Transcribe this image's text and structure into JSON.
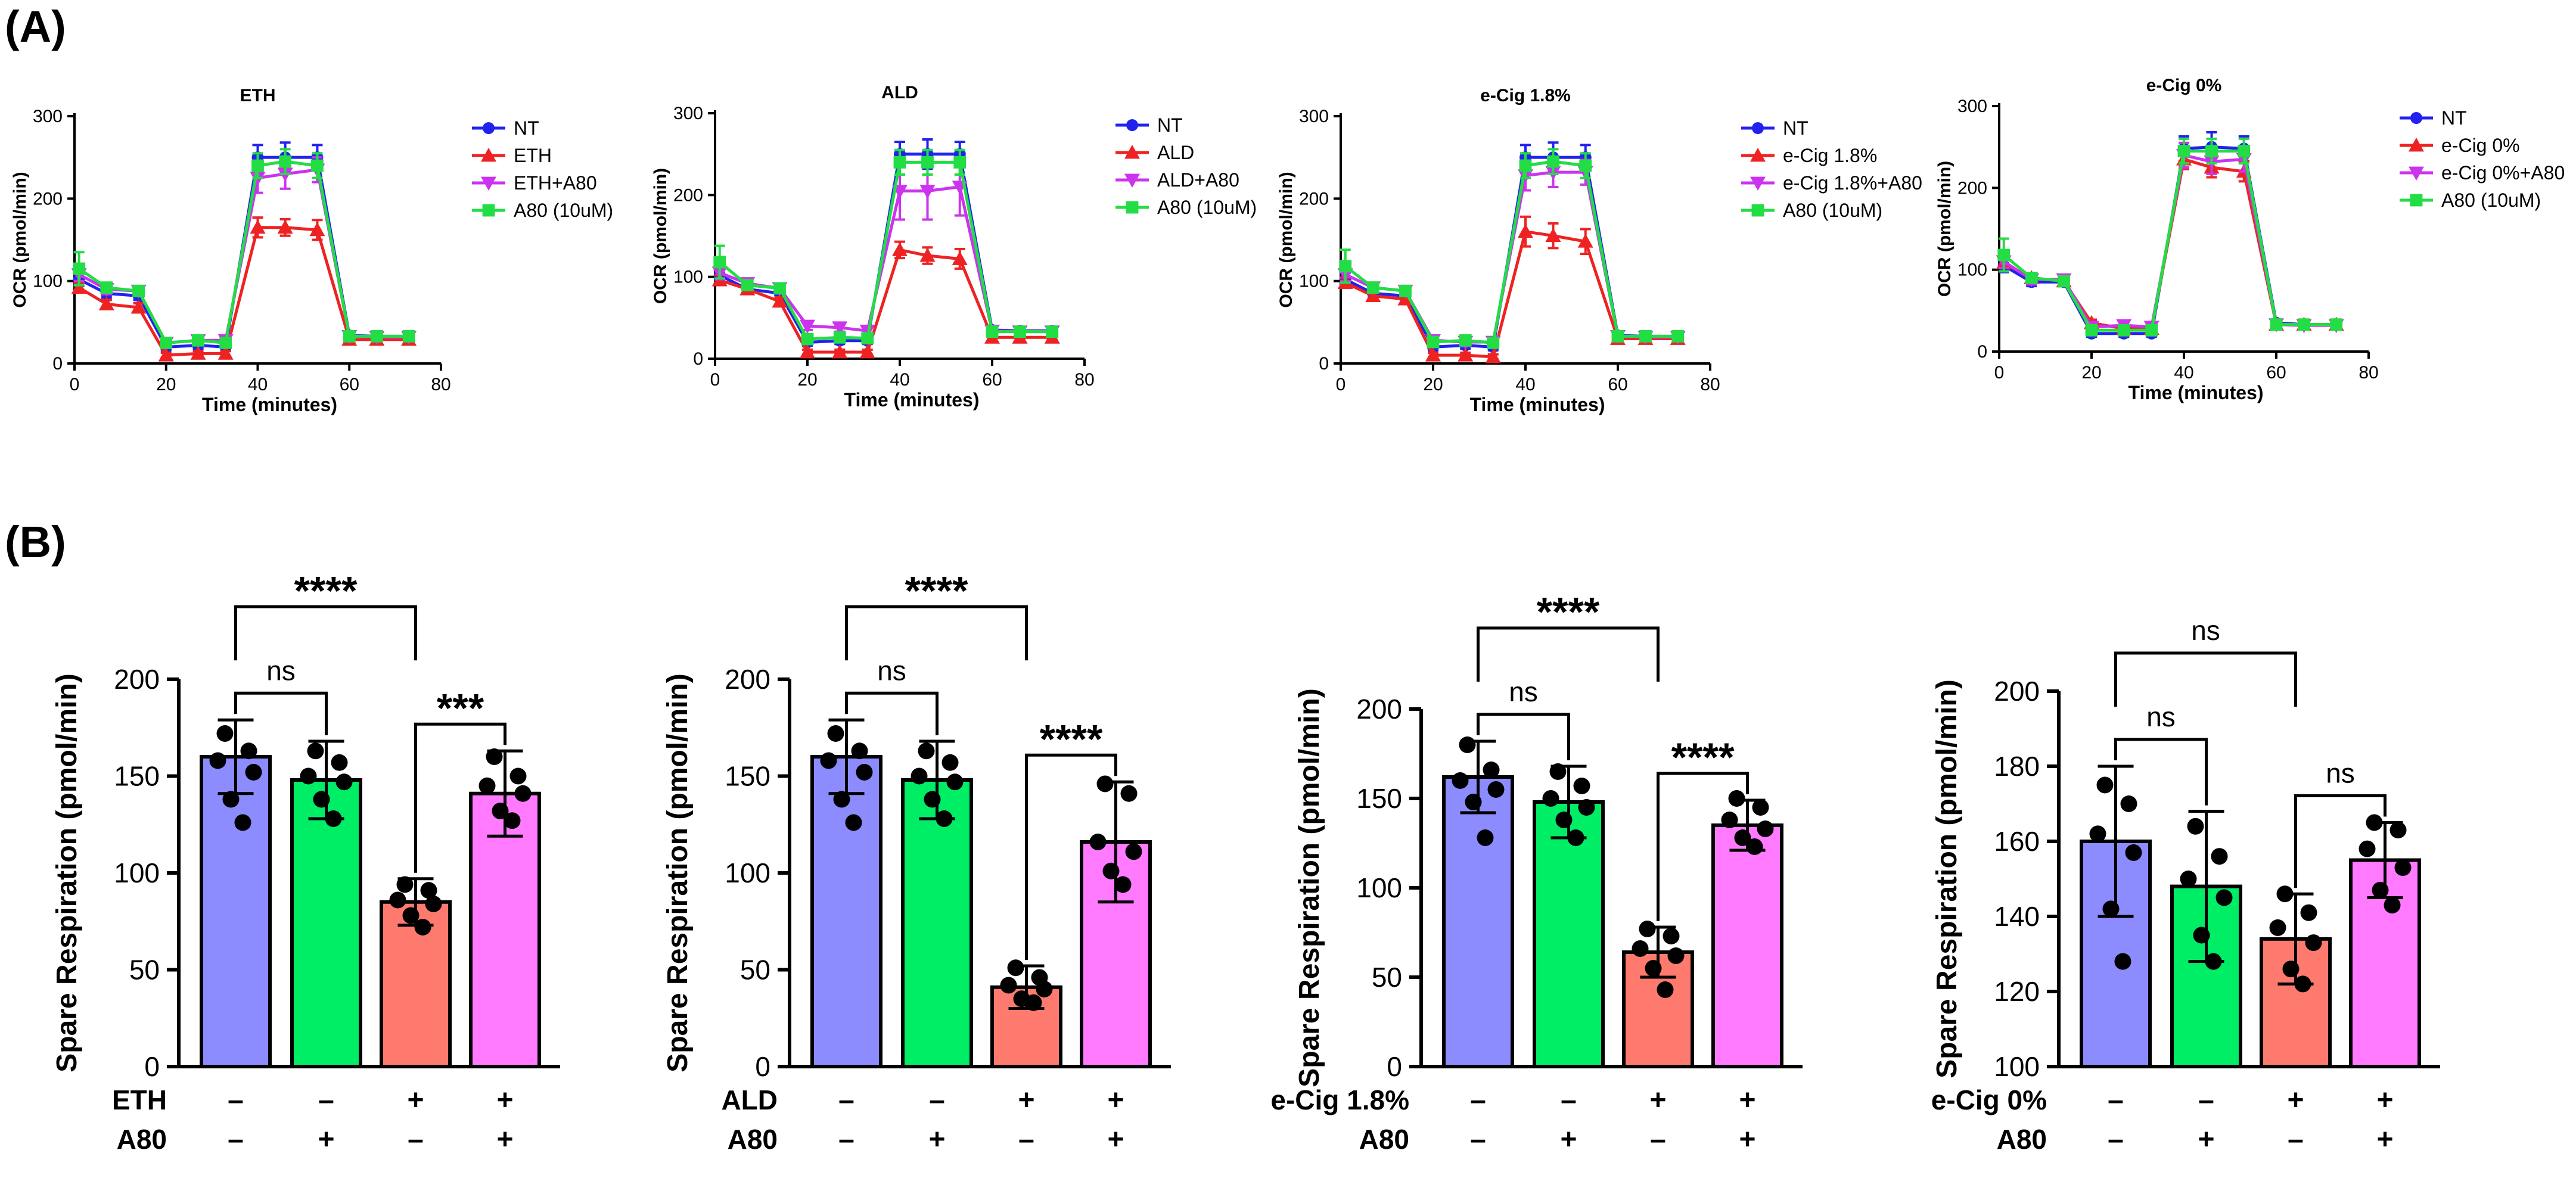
{
  "figure": {
    "panel_a_label": "(A)",
    "panel_b_label": "(B)",
    "colors": {
      "NT": "#2222ee",
      "TREAT": "#ee2222",
      "TREAT_A80": "#cc33ee",
      "A80": "#22dd44",
      "bar_NT": "#8c8cff",
      "bar_A80": "#00ee66",
      "bar_TREAT": "#ff7a6e",
      "bar_TREAT_A80": "#ff7aff"
    }
  },
  "chart_data": [
    {
      "type": "line",
      "panel": "A",
      "title": "ETH",
      "xlabel": "Time (minutes)",
      "ylabel": "OCR (pmol/min)",
      "xlim": [
        0,
        80
      ],
      "ylim": [
        0,
        300
      ],
      "xticks": [
        "0",
        "20",
        "40",
        "60",
        "80"
      ],
      "yticks": [
        "0",
        "100",
        "200",
        "300"
      ],
      "x": [
        1,
        7,
        14,
        20,
        27,
        33,
        40,
        46,
        53,
        60,
        66,
        73
      ],
      "series": [
        {
          "name": "NT",
          "color": "#2222ee",
          "marker": "circle",
          "values": [
            102,
            85,
            82,
            20,
            22,
            20,
            250,
            250,
            250,
            34,
            33,
            33
          ],
          "errors": [
            8,
            5,
            5,
            4,
            4,
            4,
            15,
            18,
            15,
            3,
            3,
            3
          ]
        },
        {
          "name": "ETH",
          "color": "#ee2222",
          "marker": "triangle",
          "values": [
            92,
            72,
            68,
            10,
            12,
            12,
            165,
            165,
            162,
            29,
            29,
            29
          ],
          "errors": [
            6,
            5,
            5,
            3,
            3,
            3,
            12,
            10,
            12,
            3,
            3,
            3
          ]
        },
        {
          "name": "ETH+A80",
          "color": "#cc33ee",
          "marker": "triangle-down",
          "values": [
            108,
            90,
            88,
            25,
            28,
            28,
            225,
            230,
            235,
            33,
            32,
            32
          ],
          "errors": [
            8,
            6,
            6,
            5,
            5,
            5,
            18,
            18,
            15,
            3,
            3,
            3
          ]
        },
        {
          "name": "A80 (10uM)",
          "color": "#22dd44",
          "marker": "square",
          "values": [
            115,
            92,
            88,
            25,
            28,
            25,
            240,
            245,
            240,
            33,
            33,
            33
          ],
          "errors": [
            20,
            6,
            6,
            5,
            5,
            5,
            15,
            15,
            15,
            3,
            3,
            3
          ]
        }
      ]
    },
    {
      "type": "line",
      "panel": "A",
      "title": "ALD",
      "xlabel": "Time (minutes)",
      "ylabel": "OCR (pmol/min)",
      "xlim": [
        0,
        80
      ],
      "ylim": [
        0,
        300
      ],
      "xticks": [
        "0",
        "20",
        "40",
        "60",
        "80"
      ],
      "yticks": [
        "0",
        "100",
        "200",
        "300"
      ],
      "x": [
        1,
        7,
        14,
        20,
        27,
        33,
        40,
        46,
        53,
        60,
        66,
        73
      ],
      "series": [
        {
          "name": "NT",
          "color": "#2222ee",
          "marker": "circle",
          "values": [
            102,
            85,
            80,
            20,
            22,
            22,
            250,
            250,
            250,
            35,
            34,
            34
          ],
          "errors": [
            8,
            5,
            5,
            4,
            4,
            4,
            15,
            18,
            15,
            3,
            3,
            3
          ]
        },
        {
          "name": "ALD",
          "color": "#ee2222",
          "marker": "triangle",
          "values": [
            96,
            85,
            70,
            8,
            8,
            8,
            133,
            126,
            122,
            26,
            26,
            26
          ],
          "errors": [
            6,
            5,
            5,
            3,
            3,
            3,
            10,
            10,
            12,
            3,
            3,
            3
          ]
        },
        {
          "name": "ALD+A80",
          "color": "#cc33ee",
          "marker": "triangle-down",
          "values": [
            105,
            92,
            86,
            40,
            38,
            34,
            205,
            205,
            210,
            34,
            33,
            33
          ],
          "errors": [
            8,
            6,
            6,
            5,
            5,
            5,
            35,
            35,
            35,
            3,
            3,
            3
          ]
        },
        {
          "name": "A80 (10uM)",
          "color": "#22dd44",
          "marker": "square",
          "values": [
            118,
            90,
            86,
            24,
            26,
            25,
            240,
            240,
            240,
            33,
            33,
            33
          ],
          "errors": [
            20,
            6,
            6,
            5,
            5,
            5,
            15,
            15,
            15,
            3,
            3,
            3
          ]
        }
      ]
    },
    {
      "type": "line",
      "panel": "A",
      "title": "e-Cig 1.8%",
      "xlabel": "Time (minutes)",
      "ylabel": "OCR (pmol/min)",
      "xlim": [
        0,
        80
      ],
      "ylim": [
        0,
        300
      ],
      "xticks": [
        "0",
        "20",
        "40",
        "60",
        "80"
      ],
      "yticks": [
        "0",
        "100",
        "200",
        "300"
      ],
      "x": [
        1,
        7,
        14,
        20,
        27,
        33,
        40,
        46,
        53,
        60,
        66,
        73
      ],
      "series": [
        {
          "name": "NT",
          "color": "#2222ee",
          "marker": "circle",
          "values": [
            102,
            85,
            82,
            20,
            22,
            20,
            250,
            250,
            250,
            34,
            33,
            33
          ],
          "errors": [
            8,
            5,
            5,
            4,
            4,
            4,
            15,
            18,
            15,
            3,
            3,
            3
          ]
        },
        {
          "name": "e-Cig 1.8%",
          "color": "#ee2222",
          "marker": "triangle",
          "values": [
            98,
            82,
            78,
            10,
            10,
            8,
            160,
            155,
            148,
            30,
            30,
            30
          ],
          "errors": [
            6,
            5,
            5,
            3,
            3,
            3,
            18,
            15,
            15,
            3,
            3,
            3
          ]
        },
        {
          "name": "e-Cig 1.8%+A80",
          "color": "#cc33ee",
          "marker": "triangle-down",
          "values": [
            108,
            92,
            88,
            28,
            26,
            26,
            228,
            232,
            232,
            33,
            32,
            32
          ],
          "errors": [
            8,
            6,
            6,
            5,
            5,
            5,
            18,
            18,
            15,
            3,
            3,
            3
          ]
        },
        {
          "name": "A80 (10uM)",
          "color": "#22dd44",
          "marker": "square",
          "values": [
            118,
            92,
            88,
            26,
            28,
            25,
            240,
            245,
            240,
            33,
            33,
            33
          ],
          "errors": [
            20,
            6,
            6,
            5,
            5,
            5,
            15,
            15,
            15,
            3,
            3,
            3
          ]
        }
      ]
    },
    {
      "type": "line",
      "panel": "A",
      "title": "e-Cig 0%",
      "xlabel": "Time (minutes)",
      "ylabel": "OCR (pmol/min)",
      "xlim": [
        0,
        80
      ],
      "ylim": [
        0,
        300
      ],
      "xticks": [
        "0",
        "20",
        "40",
        "60",
        "80"
      ],
      "yticks": [
        "0",
        "100",
        "200",
        "300"
      ],
      "x": [
        1,
        7,
        14,
        20,
        27,
        33,
        40,
        46,
        53,
        60,
        66,
        73
      ],
      "series": [
        {
          "name": "NT",
          "color": "#2222ee",
          "marker": "circle",
          "values": [
            105,
            85,
            85,
            22,
            22,
            22,
            248,
            250,
            248,
            35,
            33,
            33
          ],
          "errors": [
            8,
            5,
            5,
            4,
            4,
            4,
            15,
            18,
            15,
            3,
            3,
            3
          ]
        },
        {
          "name": "e-Cig 0%",
          "color": "#ee2222",
          "marker": "triangle",
          "values": [
            108,
            90,
            86,
            35,
            28,
            28,
            235,
            225,
            220,
            33,
            33,
            33
          ],
          "errors": [
            6,
            5,
            5,
            4,
            4,
            4,
            12,
            12,
            12,
            3,
            3,
            3
          ]
        },
        {
          "name": "e-Cig 0%+A80",
          "color": "#cc33ee",
          "marker": "triangle-down",
          "values": [
            110,
            88,
            88,
            30,
            32,
            30,
            240,
            232,
            235,
            33,
            32,
            32
          ],
          "errors": [
            8,
            6,
            6,
            5,
            5,
            5,
            15,
            15,
            15,
            3,
            3,
            3
          ]
        },
        {
          "name": "A80 (10uM)",
          "color": "#22dd44",
          "marker": "square",
          "values": [
            118,
            90,
            86,
            26,
            26,
            26,
            245,
            245,
            245,
            33,
            33,
            33
          ],
          "errors": [
            20,
            6,
            6,
            5,
            5,
            5,
            15,
            15,
            15,
            3,
            3,
            3
          ]
        }
      ]
    },
    {
      "type": "bar",
      "panel": "B",
      "ylabel": "Spare Respiration (pmol/min)",
      "ylim": [
        0,
        200
      ],
      "yticks": [
        "0",
        "50",
        "100",
        "150",
        "200"
      ],
      "row1_label": "ETH",
      "row2_label": "A80",
      "row1_signs": [
        "–",
        "–",
        "+",
        "+"
      ],
      "row2_signs": [
        "–",
        "+",
        "–",
        "+"
      ],
      "bars": [
        {
          "value": 160,
          "error": 19,
          "color": "#8c8cff",
          "points": [
            172,
            163,
            158,
            152,
            138,
            126
          ]
        },
        {
          "value": 148,
          "error": 20,
          "color": "#00ee66",
          "points": [
            163,
            157,
            150,
            147,
            138,
            128
          ]
        },
        {
          "value": 85,
          "error": 12,
          "color": "#ff7a6e",
          "points": [
            94,
            91,
            86,
            84,
            78,
            72
          ]
        },
        {
          "value": 141,
          "error": 22,
          "color": "#ff7aff",
          "points": [
            160,
            150,
            145,
            141,
            132,
            127
          ]
        }
      ],
      "brackets": [
        {
          "from": 0,
          "to": 1,
          "level": 1,
          "label": "ns"
        },
        {
          "from": 2,
          "to": 3,
          "level": 1,
          "label": "***"
        },
        {
          "from": 0,
          "to": 2,
          "level": 2,
          "label": "****"
        }
      ]
    },
    {
      "type": "bar",
      "panel": "B",
      "ylabel": "Spare Respiration (pmol/min)",
      "ylim": [
        0,
        200
      ],
      "yticks": [
        "0",
        "50",
        "100",
        "150",
        "200"
      ],
      "row1_label": "ALD",
      "row2_label": "A80",
      "row1_signs": [
        "–",
        "–",
        "+",
        "+"
      ],
      "row2_signs": [
        "–",
        "+",
        "–",
        "+"
      ],
      "bars": [
        {
          "value": 160,
          "error": 19,
          "color": "#8c8cff",
          "points": [
            172,
            163,
            158,
            152,
            138,
            126
          ]
        },
        {
          "value": 148,
          "error": 20,
          "color": "#00ee66",
          "points": [
            163,
            157,
            150,
            147,
            138,
            128
          ]
        },
        {
          "value": 41,
          "error": 11,
          "color": "#ff7a6e",
          "points": [
            51,
            46,
            42,
            40,
            35,
            33
          ]
        },
        {
          "value": 116,
          "error": 31,
          "color": "#ff7aff",
          "points": [
            146,
            141,
            116,
            111,
            101,
            94
          ]
        }
      ],
      "brackets": [
        {
          "from": 0,
          "to": 1,
          "level": 1,
          "label": "ns"
        },
        {
          "from": 2,
          "to": 3,
          "level": 1,
          "label": "****"
        },
        {
          "from": 0,
          "to": 2,
          "level": 2,
          "label": "****"
        }
      ]
    },
    {
      "type": "bar",
      "panel": "B",
      "ylabel": "Spare Respiration (pmol/min)",
      "ylim": [
        0,
        200
      ],
      "yticks": [
        "0",
        "50",
        "100",
        "150",
        "200"
      ],
      "row1_label": "e-Cig 1.8%",
      "row2_label": "A80",
      "row1_signs": [
        "–",
        "–",
        "+",
        "+"
      ],
      "row2_signs": [
        "–",
        "+",
        "–",
        "+"
      ],
      "bars": [
        {
          "value": 162,
          "error": 20,
          "color": "#8c8cff",
          "points": [
            180,
            166,
            160,
            155,
            148,
            128
          ]
        },
        {
          "value": 148,
          "error": 20,
          "color": "#00ee66",
          "points": [
            165,
            157,
            150,
            145,
            138,
            128
          ]
        },
        {
          "value": 64,
          "error": 14,
          "color": "#ff7a6e",
          "points": [
            77,
            73,
            66,
            62,
            55,
            43
          ]
        },
        {
          "value": 135,
          "error": 14,
          "color": "#ff7aff",
          "points": [
            150,
            145,
            138,
            133,
            128,
            123
          ]
        }
      ],
      "brackets": [
        {
          "from": 0,
          "to": 1,
          "level": 1,
          "label": "ns"
        },
        {
          "from": 2,
          "to": 3,
          "level": 1,
          "label": "****"
        },
        {
          "from": 0,
          "to": 2,
          "level": 2,
          "label": "****"
        }
      ]
    },
    {
      "type": "bar",
      "panel": "B",
      "ylabel": "Spare Respiration (pmol/min)",
      "ylim": [
        100,
        200
      ],
      "yticks": [
        "100",
        "120",
        "140",
        "160",
        "180",
        "200"
      ],
      "row1_label": "e-Cig 0%",
      "row2_label": "A80",
      "row1_signs": [
        "–",
        "–",
        "+",
        "+"
      ],
      "row2_signs": [
        "–",
        "+",
        "–",
        "+"
      ],
      "bars": [
        {
          "value": 160,
          "error": 20,
          "color": "#8c8cff",
          "points": [
            175,
            170,
            162,
            157,
            142,
            128
          ]
        },
        {
          "value": 148,
          "error": 20,
          "color": "#00ee66",
          "points": [
            164,
            156,
            150,
            145,
            135,
            128
          ]
        },
        {
          "value": 134,
          "error": 12,
          "color": "#ff7a6e",
          "points": [
            146,
            141,
            137,
            133,
            126,
            122
          ]
        },
        {
          "value": 155,
          "error": 10,
          "color": "#ff7aff",
          "points": [
            165,
            163,
            158,
            153,
            147,
            143
          ]
        }
      ],
      "brackets": [
        {
          "from": 0,
          "to": 1,
          "level": 1,
          "label": "ns"
        },
        {
          "from": 2,
          "to": 3,
          "level": 1,
          "label": "ns"
        },
        {
          "from": 0,
          "to": 2,
          "level": 2,
          "label": "ns"
        }
      ]
    }
  ]
}
